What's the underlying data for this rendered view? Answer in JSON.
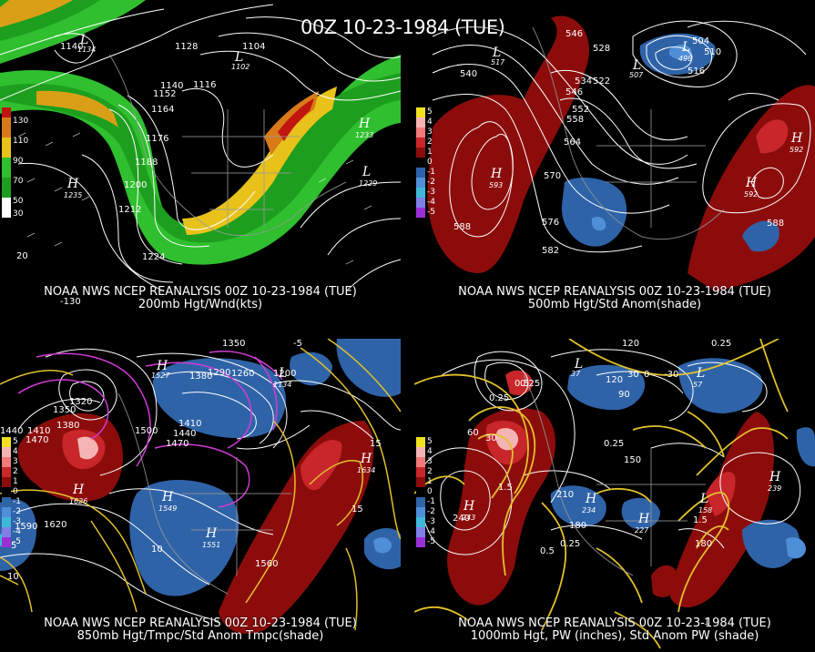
{
  "main_title": "00Z 10-23-1984 (TUE)",
  "panels": [
    {
      "caption_line1": "NOAA NWS NCEP REANALYSIS 00Z 10-23-1984 (TUE)",
      "caption_line2": "200mb Hgt/Wnd(kts)",
      "legend": [
        "130",
        "110",
        "90",
        "70",
        "50",
        "30"
      ],
      "contour_labels": [
        "1140",
        "1128",
        "1104",
        "1152",
        "1140",
        "1116",
        "1164",
        "1176",
        "1188",
        "1200",
        "1212",
        "1224",
        "20",
        "-130"
      ],
      "centers": [
        {
          "type": "L",
          "value": "1134"
        },
        {
          "type": "L",
          "value": "1102"
        },
        {
          "type": "H",
          "value": "1233"
        },
        {
          "type": "H",
          "value": "1235"
        },
        {
          "type": "L",
          "value": "1229"
        }
      ]
    },
    {
      "caption_line1": "NOAA NWS NCEP REANALYSIS 00Z 10-23-1984 (TUE)",
      "caption_line2": "500mb Hgt/Std Anom(shade)",
      "legend": [
        "5",
        "4",
        "3",
        "2",
        "1",
        "0",
        "-1",
        "-2",
        "-3",
        "-4",
        "-5"
      ],
      "contour_labels": [
        "546",
        "528",
        "540",
        "534",
        "522",
        "546",
        "552",
        "558",
        "564",
        "570",
        "576",
        "582",
        "588",
        "588",
        "504",
        "510",
        "516"
      ],
      "centers": [
        {
          "type": "L",
          "value": "517"
        },
        {
          "type": "L",
          "value": "507"
        },
        {
          "type": "L",
          "value": "498"
        },
        {
          "type": "H",
          "value": "593"
        },
        {
          "type": "H",
          "value": "592"
        },
        {
          "type": "H",
          "value": "592"
        }
      ]
    },
    {
      "caption_line1": "NOAA NWS NCEP REANALYSIS 00Z 10-23-1984 (TUE)",
      "caption_line2": "850mb Hgt/Tmpc/Std Anom Tmpc(shade)",
      "legend": [
        "5",
        "4",
        "3",
        "2",
        "1",
        "0",
        "-1",
        "-2",
        "-3",
        "-4",
        "-5"
      ],
      "contour_labels": [
        "1350",
        "1320",
        "1380",
        "1410",
        "1440",
        "1470",
        "1500",
        "1410",
        "1440",
        "1470",
        "1350",
        "1290",
        "1260",
        "1200",
        "1380",
        "1620",
        "1590",
        "1560",
        "15",
        "15",
        "10",
        "10",
        "5",
        "-5"
      ],
      "centers": [
        {
          "type": "H",
          "value": "1527"
        },
        {
          "type": "H",
          "value": "1626"
        },
        {
          "type": "H",
          "value": "1549"
        },
        {
          "type": "H",
          "value": "1551"
        },
        {
          "type": "H",
          "value": "1634"
        },
        {
          "type": "L",
          "value": "1134"
        }
      ]
    },
    {
      "caption_line1": "NOAA NWS NCEP REANALYSIS 00Z 10-23-1984 (TUE)",
      "caption_line2": "1000mb Hgt, PW (inches), Std Anom PW (shade)",
      "legend": [
        "5",
        "4",
        "3",
        "2",
        "1",
        "0",
        "-1",
        "-2",
        "-3",
        "-4",
        "-5"
      ],
      "contour_labels": [
        "120",
        "60",
        "120",
        "90",
        "30",
        "0",
        "-30",
        "0.25",
        "0.25",
        "0.5",
        "30",
        "0.25",
        "150",
        "1.5",
        "210",
        "180",
        "240",
        "0.25",
        "0.5",
        "1.5",
        "180",
        "1",
        "0.25"
      ],
      "centers": [
        {
          "type": "H",
          "value": "243"
        },
        {
          "type": "H",
          "value": "234"
        },
        {
          "type": "H",
          "value": "239"
        },
        {
          "type": "H",
          "value": "227"
        },
        {
          "type": "L",
          "value": "37"
        },
        {
          "type": "L",
          "value": "57"
        },
        {
          "type": "L",
          "value": "158"
        }
      ]
    }
  ],
  "colors": {
    "jet_light_green": "#2fbf2f",
    "jet_green": "#1e9e1e",
    "jet_yellow": "#e8c21a",
    "jet_orange": "#d97a18",
    "jet_red": "#c0160f",
    "anom_red_dark": "#8c0c0c",
    "anom_red": "#c8262a",
    "anom_pink": "#f27a7a",
    "anom_blue": "#2f63a8",
    "anom_blue_light": "#4f8fd8",
    "temp_line": "#e2c12b",
    "magenta_line": "#d23cd6"
  }
}
